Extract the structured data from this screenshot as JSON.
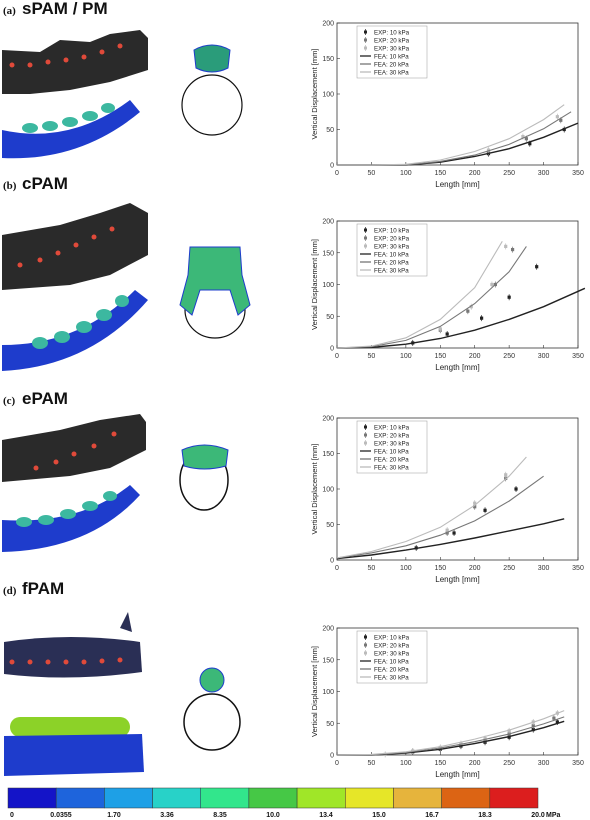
{
  "panels": [
    {
      "tag": "(a)",
      "title": "sPAM / PM"
    },
    {
      "tag": "(b)",
      "title": "cPAM"
    },
    {
      "tag": "(c)",
      "title": "ePAM"
    },
    {
      "tag": "(d)",
      "title": "fPAM"
    }
  ],
  "colorbar": {
    "labels": [
      "0",
      "0.0355",
      "1.70",
      "3.36",
      "8.35",
      "10.0",
      "13.4",
      "15.0",
      "16.7",
      "18.3",
      "20.0"
    ],
    "unit": "MPa",
    "colors": [
      "#1414c8",
      "#1e64dc",
      "#1ea0e6",
      "#28d2c8",
      "#32e68c",
      "#46c846",
      "#a0e628",
      "#e6e628",
      "#e6b43c",
      "#dc6414",
      "#dc1e1e"
    ]
  },
  "chart_data": [
    {
      "type": "line",
      "xlabel": "Length [mm]",
      "ylabel": "Vertical Displacement [mm]",
      "xlim": [
        0,
        350
      ],
      "ylim": [
        0,
        200
      ],
      "xticks": [
        0,
        50,
        100,
        150,
        200,
        250,
        300,
        350
      ],
      "yticks": [
        0,
        50,
        100,
        150,
        200
      ],
      "legend": "top-left",
      "series": [
        {
          "name": "EXP: 10 kPa",
          "kind": "exp",
          "color": "#222222",
          "x": [
            220,
            280,
            330
          ],
          "y": [
            16,
            30,
            50
          ]
        },
        {
          "name": "EXP: 20 kPa",
          "kind": "exp",
          "color": "#777777",
          "x": [
            220,
            275,
            325
          ],
          "y": [
            18,
            37,
            63
          ]
        },
        {
          "name": "EXP: 30 kPa",
          "kind": "exp",
          "color": "#bbbbbb",
          "x": [
            220,
            270,
            320
          ],
          "y": [
            21,
            40,
            68
          ]
        },
        {
          "name": "FEA: 10 kPa",
          "kind": "fea",
          "color": "#222222",
          "x": [
            0,
            50,
            100,
            150,
            200,
            250,
            300,
            350
          ],
          "y": [
            0,
            0,
            0,
            4,
            12,
            23,
            39,
            59
          ]
        },
        {
          "name": "FEA: 20 kPa",
          "kind": "fea",
          "color": "#777777",
          "x": [
            0,
            50,
            100,
            150,
            200,
            250,
            300,
            340
          ],
          "y": [
            0,
            0,
            0,
            5,
            14,
            29,
            51,
            75
          ]
        },
        {
          "name": "FEA: 30 kPa",
          "kind": "fea",
          "color": "#bbbbbb",
          "x": [
            0,
            50,
            100,
            150,
            200,
            250,
            300,
            330
          ],
          "y": [
            0,
            0,
            1,
            7,
            19,
            37,
            64,
            85
          ]
        }
      ]
    },
    {
      "type": "line",
      "xlabel": "Length [mm]",
      "ylabel": "Vertical Displacement [mm]",
      "xlim": [
        0,
        350
      ],
      "ylim": [
        0,
        200
      ],
      "xticks": [
        0,
        50,
        100,
        150,
        200,
        250,
        300,
        350
      ],
      "yticks": [
        0,
        50,
        100,
        150,
        200
      ],
      "legend": "top-left",
      "series": [
        {
          "name": "EXP: 10 kPa",
          "kind": "exp",
          "color": "#222222",
          "x": [
            110,
            160,
            210,
            250,
            290
          ],
          "y": [
            8,
            22,
            47,
            80,
            128
          ]
        },
        {
          "name": "EXP: 20 kPa",
          "kind": "exp",
          "color": "#777777",
          "x": [
            150,
            190,
            230,
            255
          ],
          "y": [
            28,
            58,
            100,
            155
          ]
        },
        {
          "name": "EXP: 30 kPa",
          "kind": "exp",
          "color": "#bbbbbb",
          "x": [
            150,
            195,
            225,
            245
          ],
          "y": [
            30,
            65,
            100,
            160
          ]
        },
        {
          "name": "FEA: 10 kPa",
          "kind": "fea",
          "color": "#222222",
          "x": [
            0,
            50,
            100,
            150,
            200,
            250,
            300,
            360
          ],
          "y": [
            0,
            1,
            6,
            15,
            28,
            45,
            65,
            94
          ]
        },
        {
          "name": "FEA: 20 kPa",
          "kind": "fea",
          "color": "#777777",
          "x": [
            0,
            50,
            100,
            150,
            200,
            250,
            275
          ],
          "y": [
            0,
            2,
            12,
            34,
            70,
            120,
            160
          ]
        },
        {
          "name": "FEA: 30 kPa",
          "kind": "fea",
          "color": "#bbbbbb",
          "x": [
            0,
            50,
            100,
            150,
            200,
            240
          ],
          "y": [
            0,
            3,
            16,
            45,
            95,
            168
          ]
        }
      ]
    },
    {
      "type": "line",
      "xlabel": "Length [mm]",
      "ylabel": "Vertical Displacement [mm]",
      "xlim": [
        0,
        350
      ],
      "ylim": [
        0,
        200
      ],
      "xticks": [
        0,
        50,
        100,
        150,
        200,
        250,
        300,
        350
      ],
      "yticks": [
        0,
        50,
        100,
        150,
        200
      ],
      "legend": "top-left",
      "series": [
        {
          "name": "EXP: 10 kPa",
          "kind": "exp",
          "color": "#222222",
          "x": [
            115,
            170,
            215,
            260
          ],
          "y": [
            17,
            38,
            70,
            100
          ]
        },
        {
          "name": "EXP: 20 kPa",
          "kind": "exp",
          "color": "#777777",
          "x": [
            160,
            200,
            245
          ],
          "y": [
            38,
            75,
            115
          ]
        },
        {
          "name": "EXP: 30 kPa",
          "kind": "exp",
          "color": "#bbbbbb",
          "x": [
            160,
            200,
            245
          ],
          "y": [
            42,
            80,
            120
          ]
        },
        {
          "name": "FEA: 10 kPa",
          "kind": "fea",
          "color": "#222222",
          "x": [
            0,
            50,
            100,
            150,
            200,
            250,
            300,
            330
          ],
          "y": [
            2,
            7,
            14,
            22,
            31,
            41,
            51,
            58
          ]
        },
        {
          "name": "FEA: 20 kPa",
          "kind": "fea",
          "color": "#777777",
          "x": [
            0,
            50,
            100,
            150,
            200,
            250,
            300
          ],
          "y": [
            3,
            10,
            20,
            35,
            55,
            83,
            118
          ]
        },
        {
          "name": "FEA: 30 kPa",
          "kind": "fea",
          "color": "#bbbbbb",
          "x": [
            0,
            50,
            100,
            150,
            200,
            250,
            275
          ],
          "y": [
            3,
            12,
            26,
            46,
            77,
            118,
            145
          ]
        }
      ]
    },
    {
      "type": "line",
      "xlabel": "Length [mm]",
      "ylabel": "Vertical Displacement [mm]",
      "xlim": [
        0,
        350
      ],
      "ylim": [
        0,
        200
      ],
      "xticks": [
        0,
        50,
        100,
        150,
        200,
        250,
        300,
        350
      ],
      "yticks": [
        0,
        50,
        100,
        150,
        200
      ],
      "legend": "top-left",
      "series": [
        {
          "name": "EXP: 10 kPa",
          "kind": "exp",
          "color": "#222222",
          "x": [
            110,
            150,
            180,
            215,
            250,
            285,
            320
          ],
          "y": [
            5,
            9,
            14,
            20,
            28,
            40,
            52
          ]
        },
        {
          "name": "EXP: 20 kPa",
          "kind": "exp",
          "color": "#777777",
          "x": [
            110,
            150,
            180,
            215,
            250,
            285,
            315
          ],
          "y": [
            6,
            10,
            16,
            23,
            33,
            46,
            58
          ]
        },
        {
          "name": "EXP: 30 kPa",
          "kind": "exp",
          "color": "#bbbbbb",
          "x": [
            70,
            110,
            150,
            180,
            215,
            250,
            285,
            320
          ],
          "y": [
            1,
            6,
            12,
            18,
            26,
            38,
            52,
            66
          ]
        },
        {
          "name": "FEA: 10 kPa",
          "kind": "fea",
          "color": "#222222",
          "x": [
            0,
            50,
            100,
            150,
            200,
            250,
            300,
            330
          ],
          "y": [
            0,
            0,
            3,
            9,
            18,
            29,
            43,
            53
          ]
        },
        {
          "name": "FEA: 20 kPa",
          "kind": "fea",
          "color": "#777777",
          "x": [
            0,
            50,
            100,
            150,
            200,
            250,
            300,
            330
          ],
          "y": [
            0,
            0,
            4,
            11,
            21,
            33,
            49,
            60
          ]
        },
        {
          "name": "FEA: 30 kPa",
          "kind": "fea",
          "color": "#bbbbbb",
          "x": [
            0,
            50,
            100,
            150,
            200,
            250,
            300,
            330
          ],
          "y": [
            0,
            1,
            5,
            13,
            25,
            39,
            57,
            70
          ]
        }
      ]
    }
  ]
}
